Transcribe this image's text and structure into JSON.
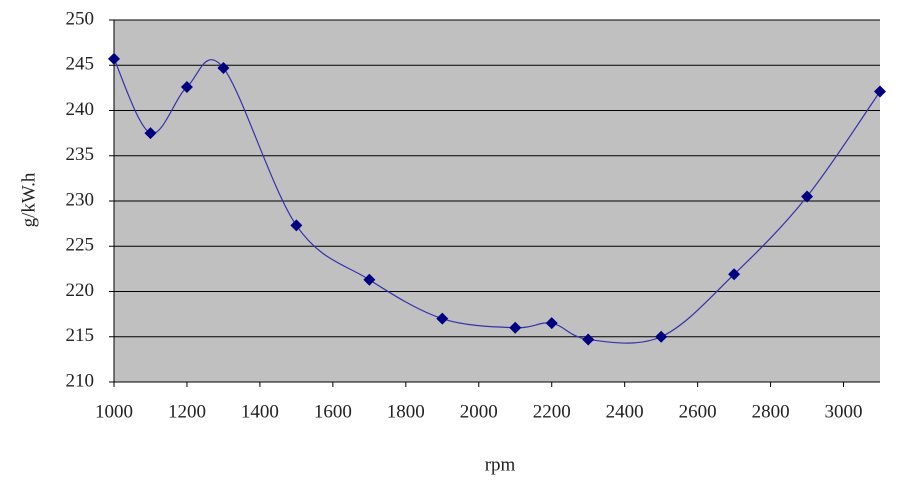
{
  "chart_data": {
    "type": "line",
    "x_label": "rpm",
    "y_label": "g/kW.h",
    "x": [
      1000,
      1100,
      1200,
      1300,
      1500,
      1700,
      1900,
      2100,
      2200,
      2300,
      2500,
      2700,
      2900,
      3100
    ],
    "series": [
      {
        "color": "#000080",
        "values": [
          245.7,
          237.5,
          242.6,
          244.7,
          227.3,
          221.3,
          217.0,
          216.0,
          216.5,
          214.7,
          215.0,
          221.9,
          230.5,
          242.1
        ]
      }
    ],
    "xlim": [
      1000,
      3100
    ],
    "xticks": [
      1000,
      1200,
      1400,
      1600,
      1800,
      2000,
      2200,
      2400,
      2600,
      2800,
      3000
    ],
    "ylim": [
      210,
      250
    ],
    "yticks": [
      210,
      215,
      220,
      225,
      230,
      235,
      240,
      245,
      250
    ],
    "grid": true,
    "smooth": true
  }
}
